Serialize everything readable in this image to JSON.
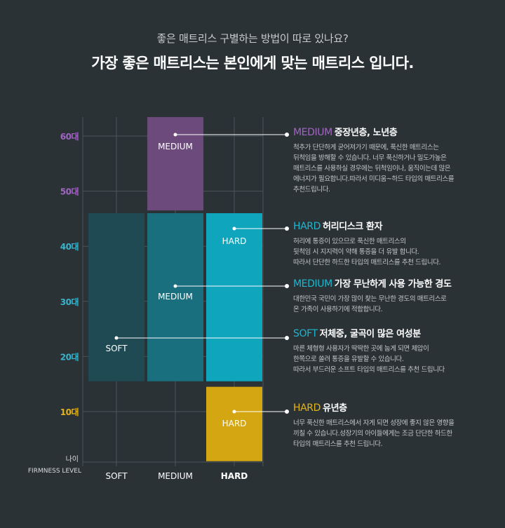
{
  "header": {
    "subtitle": "좋은 매트리스 구별하는 방법이 따로 있나요?",
    "title": "가장 좋은 매트리스는 본인에게 맞는 매트리스 입니다."
  },
  "chart_data": {
    "type": "range-bar",
    "y_ticks": [
      "60대",
      "50대",
      "40대",
      "30대",
      "20대",
      "10대"
    ],
    "y_tick_values": [
      60,
      50,
      40,
      30,
      20,
      10
    ],
    "y_axis_label": "나이",
    "x_axis_label": "FIRMNESS LEVEL",
    "categories": [
      "SOFT",
      "MEDIUM",
      "HARD"
    ],
    "ylim": [
      0,
      65
    ],
    "grid": true,
    "bars": [
      {
        "category": "MEDIUM",
        "from": 46.5,
        "to": 65,
        "label": "MEDIUM",
        "color": "#6c4a7c",
        "label_at": 59
      },
      {
        "category": "SOFT",
        "from": 15.5,
        "to": 46,
        "label": "SOFT",
        "color": "#1f4a53",
        "label_at": 21
      },
      {
        "category": "MEDIUM",
        "from": 15.5,
        "to": 46,
        "label": "MEDIUM",
        "color": "#196f7d",
        "label_at": 31
      },
      {
        "category": "HARD",
        "from": 15.5,
        "to": 46,
        "label": "HARD",
        "color": "#0fa6bd",
        "label_at": 41
      },
      {
        "category": "HARD",
        "from": 1,
        "to": 14.5,
        "label": "HARD",
        "color": "#d4a712",
        "label_at": 8
      }
    ]
  },
  "colors": {
    "background": "#2b3236",
    "tick_40_30_20": "#3ab3ca",
    "tick_60_50": "#a066c2",
    "tick_10": "#e3b417",
    "gridline": "#4a5458"
  },
  "descriptions": [
    {
      "keyword": "MEDIUM",
      "keyword_color": "#a066c2",
      "title": "중장년층, 노년층",
      "lines": [
        "척추가 단단하게 굳어져가기 때문에, 푹신한 매트리스는",
        "뒤척임을 방해할 수 있습니다. 너무 푹신하거나 밀도가높은",
        "매트리스를 사용하실 경우에는 뒤척임이나, 움직이는데 많은",
        "에너지가 필요합니다.따라서 미디움~하드 타입의 매트리스를",
        "추천드립니다."
      ]
    },
    {
      "keyword": "HARD",
      "keyword_color": "#1fb6cf",
      "title": "허리디스크 환자",
      "lines": [
        "허리에 통증이 있으므로 푹신한 매트리스의",
        "뒷척임 시 지지력이 약해 통증을 더 유발 합니다.",
        "따라서 단단한 하드한 타입의 매트리스를 추천 드립니다."
      ]
    },
    {
      "keyword": "MEDIUM",
      "keyword_color": "#1fb6cf",
      "title": "가장 무난하게 사용 가능한 경도",
      "lines": [
        "대한민국 국민이 가장 많이 찾는 무난한 경도의 매트리스로",
        "온 가족이 사용하기에 적합합니다."
      ]
    },
    {
      "keyword": "SOFT",
      "keyword_color": "#1fb6cf",
      "title": "저체중, 굴곡이 많은 여성분",
      "lines": [
        "마른 체형형 사용자가 딱딱한 곳에 눕게 되면 체압이",
        "한쪽으로 쏠려 통증을 유발할 수 있습니다.",
        "따라서 부드러운 소프트 타입의 매트리스를 추천 드립니다"
      ]
    },
    {
      "keyword": "HARD",
      "keyword_color": "#e3b417",
      "title": "유년층",
      "lines": [
        "너무 푹신한 매트리스에서 자게 되면 성장에 좋지 않은 영향을",
        "끼칠 수 있습니다.성장기의 아이들에게는 조금 단단한 하드한",
        "타입의 매트리스를 추천 드립니다."
      ]
    }
  ]
}
